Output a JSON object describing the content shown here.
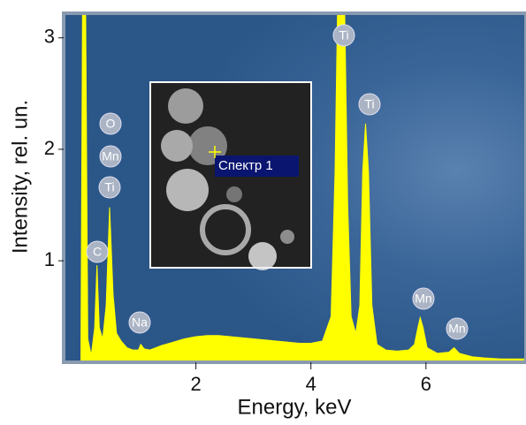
{
  "chart_data": {
    "type": "area",
    "x_label": "Energy, keV",
    "y_label": "Intensity, rel. un.",
    "color": "#ffff00",
    "xlim": [
      -0.3,
      7.74
    ],
    "ylim": [
      0.09,
      3.22
    ],
    "xticks": [
      2,
      4,
      6
    ],
    "yticks": [
      1,
      2,
      3
    ],
    "x": [
      0.0,
      0.03,
      0.08,
      0.12,
      0.18,
      0.24,
      0.28,
      0.32,
      0.38,
      0.44,
      0.5,
      0.56,
      0.62,
      0.7,
      0.8,
      0.9,
      1.0,
      1.04,
      1.1,
      1.2,
      1.4,
      1.6,
      1.8,
      2.0,
      2.2,
      2.4,
      2.6,
      2.8,
      3.0,
      3.2,
      3.4,
      3.6,
      3.8,
      4.0,
      4.2,
      4.35,
      4.42,
      4.47,
      4.58,
      4.64,
      4.7,
      4.78,
      4.85,
      4.9,
      4.95,
      5.0,
      5.06,
      5.15,
      5.3,
      5.5,
      5.7,
      5.8,
      5.86,
      5.9,
      5.95,
      6.02,
      6.2,
      6.4,
      6.49,
      6.58,
      6.8,
      7.0,
      7.3,
      7.7
    ],
    "values": [
      0.12,
      3.5,
      3.5,
      0.3,
      0.15,
      0.4,
      0.96,
      0.4,
      0.3,
      0.6,
      1.48,
      0.7,
      0.35,
      0.28,
      0.22,
      0.2,
      0.2,
      0.25,
      0.21,
      0.2,
      0.24,
      0.27,
      0.3,
      0.32,
      0.33,
      0.33,
      0.32,
      0.31,
      0.3,
      0.29,
      0.28,
      0.27,
      0.26,
      0.26,
      0.28,
      0.5,
      1.8,
      3.5,
      3.5,
      1.5,
      0.5,
      0.35,
      0.6,
      1.8,
      2.23,
      1.8,
      0.6,
      0.25,
      0.2,
      0.19,
      0.2,
      0.25,
      0.4,
      0.49,
      0.4,
      0.22,
      0.17,
      0.18,
      0.22,
      0.17,
      0.14,
      0.13,
      0.12,
      0.12
    ],
    "peak_labels": [
      "C",
      "O",
      "Mn",
      "Ti",
      "Na",
      "Ti",
      "Ti",
      "Mn",
      "Mn"
    ]
  },
  "inset_label": "Спектр 1"
}
